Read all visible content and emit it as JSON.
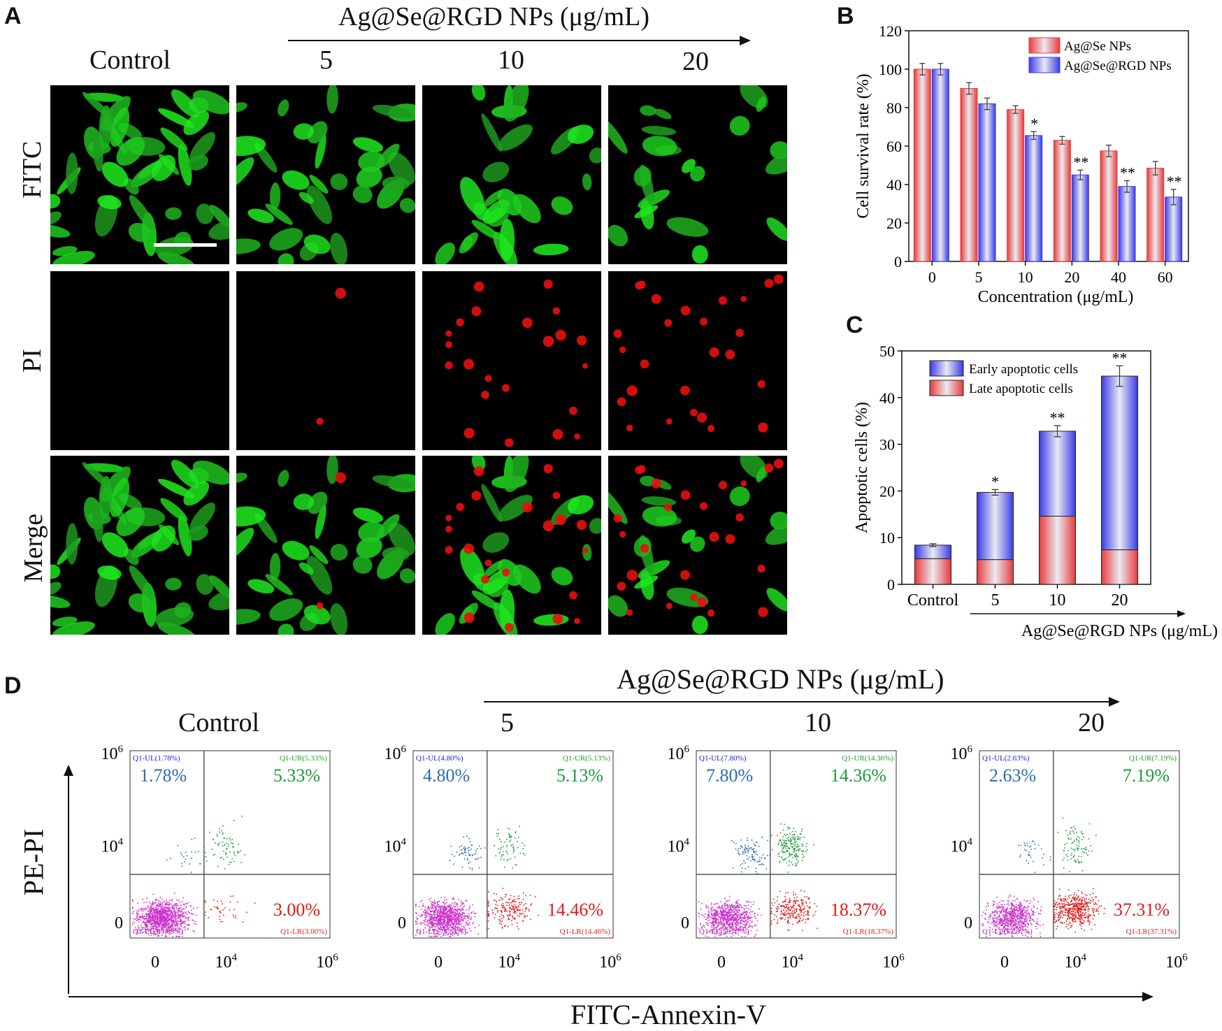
{
  "panel_A": {
    "letter": "A",
    "series_title": "Ag@Se@RGD NPs (μg/mL)",
    "columns": [
      "Control",
      "5",
      "10",
      "20"
    ],
    "rows": [
      "FITC",
      "PI",
      "Merge"
    ],
    "scale_bar_color": "#ffffff",
    "colors": {
      "fitc": "#2ecc2e",
      "pi": "#e81010",
      "background": "#000000"
    },
    "pi_cell_counts": [
      0,
      2,
      22,
      26
    ]
  },
  "panel_B": {
    "letter": "B",
    "chart_data": {
      "type": "bar",
      "categories": [
        "0",
        "5",
        "10",
        "20",
        "40",
        "60"
      ],
      "series": [
        {
          "name": "Ag@Se NPs",
          "values": [
            100,
            90,
            79,
            63,
            57.5,
            48.5
          ],
          "errors": [
            3,
            3,
            2,
            2,
            3,
            3.5
          ],
          "color": "#e83a3a"
        },
        {
          "name": "Ag@Se@RGD NPs",
          "values": [
            100,
            82,
            65.5,
            45,
            39,
            33.5
          ],
          "errors": [
            3,
            3,
            2,
            2.5,
            3,
            4
          ],
          "color": "#3a3ae8"
        }
      ],
      "significance": [
        "",
        "",
        "*",
        "**",
        "**",
        "**"
      ],
      "xlabel": "Concentration (μg/mL)",
      "ylabel": "Cell survival rate (%)",
      "ylim": [
        0,
        120
      ],
      "yticks": [
        "0",
        "20",
        "40",
        "60",
        "80",
        "100",
        "120"
      ],
      "legend": "top-right"
    }
  },
  "panel_C": {
    "letter": "C",
    "chart_data": {
      "type": "bar",
      "stacked": true,
      "categories": [
        "Control",
        "5",
        "10",
        "20"
      ],
      "series": [
        {
          "name": "Late apoptotic cells",
          "values": [
            5.5,
            5.3,
            14.6,
            7.4
          ],
          "color": "#e83a3a"
        },
        {
          "name": "Early apoptotic cells",
          "values": [
            2.9,
            14.4,
            18.2,
            37.2
          ],
          "color": "#3a3ae8"
        }
      ],
      "totals": [
        8.4,
        19.7,
        32.8,
        44.6
      ],
      "errors": [
        0.3,
        0.6,
        1.2,
        2.2
      ],
      "significance": [
        "",
        "*",
        "**",
        "**"
      ],
      "ylabel": "Apoptotic cells (%)",
      "xlabel": "Ag@Se@RGD NPs (μg/mL)",
      "ylim": [
        0,
        50
      ],
      "yticks": [
        "0",
        "10",
        "20",
        "30",
        "40",
        "50"
      ],
      "legend": "top-left"
    }
  },
  "panel_D": {
    "letter": "D",
    "series_title": "Ag@Se@RGD NPs (μg/mL)",
    "xlabel": "FITC-Annexin-V",
    "ylabel": "PE-PI",
    "tick_zero": "0",
    "tick_base": "10",
    "tick_exp4": "4",
    "tick_exp6": "6",
    "colors": {
      "UL": "#2a6db5",
      "UR": "#1a9a3a",
      "LR": "#e01b1b",
      "LL": "#cc33cc",
      "gate_ul": "#2020d0",
      "gate_ur": "#20a020",
      "gate_lr": "#e02020",
      "gate_ll": "#b020b0"
    },
    "plots": [
      {
        "title": "Control",
        "UL": "1.78%",
        "UR": "5.33%",
        "LR": "3.00%",
        "UL_gate": "Q1-UL(1.78%)",
        "UR_gate": "Q1-UR(5.33%)",
        "LR_gate": "Q1-LR(3.00%)",
        "LL_gate": "Q1-LL(89.89%)",
        "fractions": {
          "UL": 0.0178,
          "UR": 0.0533,
          "LR": 0.03,
          "LL": 0.8989
        }
      },
      {
        "title": "5",
        "UL": "4.80%",
        "UR": "5.13%",
        "LR": "14.46%",
        "UL_gate": "Q1-UL(4.80%)",
        "UR_gate": "Q1-UR(5.13%)",
        "LR_gate": "Q1-LR(14.46%)",
        "LL_gate": "Q1-LL(75.61%)",
        "fractions": {
          "UL": 0.048,
          "UR": 0.0513,
          "LR": 0.1446,
          "LL": 0.7561
        }
      },
      {
        "title": "10",
        "UL": "7.80%",
        "UR": "14.36%",
        "LR": "18.37%",
        "UL_gate": "Q1-UL(7.80%)",
        "UR_gate": "Q1-UR(14.36%)",
        "LR_gate": "Q1-LR(18.37%)",
        "LL_gate": "Q1-LL(59.47%)",
        "fractions": {
          "UL": 0.078,
          "UR": 0.1436,
          "LR": 0.1837,
          "LL": 0.5947
        }
      },
      {
        "title": "20",
        "UL": "2.63%",
        "UR": "7.19%",
        "LR": "37.31%",
        "UL_gate": "Q1-UL(2.63%)",
        "UR_gate": "Q1-UR(7.19%)",
        "LR_gate": "Q1-LR(37.31%)",
        "LL_gate": "Q1-LL(52.87%)",
        "fractions": {
          "UL": 0.0263,
          "UR": 0.0719,
          "LR": 0.3731,
          "LL": 0.5287
        }
      }
    ]
  }
}
